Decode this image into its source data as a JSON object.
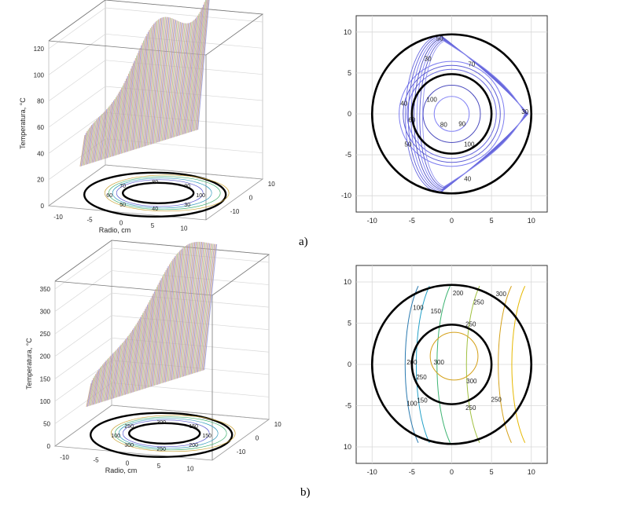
{
  "figure": {
    "label_a": "a)",
    "label_b": "b)"
  },
  "chart_data": [
    {
      "id": "a-3d",
      "type": "surface3d",
      "ylabel": "Temperatura, °C",
      "xlabel": "Radio, cm",
      "z_ticks": [
        "0",
        "20",
        "40",
        "60",
        "80",
        "100",
        "120"
      ],
      "x_ticks": [
        "-10",
        "-5",
        "0",
        "5",
        "10"
      ],
      "y_ticks": [
        "10",
        "0",
        "-10"
      ],
      "zlim": [
        0,
        130
      ],
      "base_contour_labels": [
        "100",
        "30",
        "40",
        "50",
        "60",
        "70",
        "80",
        "90"
      ],
      "grid": true
    },
    {
      "id": "a-contour",
      "type": "contour",
      "xlim": [
        -12,
        12
      ],
      "ylim": [
        -12,
        12
      ],
      "x_ticks": [
        "-10",
        "-5",
        "0",
        "5",
        "10"
      ],
      "y_ticks": [
        "10",
        "5",
        "0",
        "-5",
        "-10"
      ],
      "outer_circle_radius": 10,
      "inner_circle_radius": 5,
      "contour_labels": [
        "30",
        "40",
        "50",
        "60",
        "70",
        "80",
        "90",
        "100",
        "100",
        "30",
        "50",
        "40"
      ],
      "grid": true
    },
    {
      "id": "b-3d",
      "type": "surface3d",
      "ylabel": "Temperatura, °C",
      "xlabel": "Radio, cm",
      "z_ticks": [
        "0",
        "50",
        "100",
        "150",
        "200",
        "250",
        "300",
        "350"
      ],
      "x_ticks": [
        "-10",
        "-5",
        "0",
        "5",
        "10"
      ],
      "y_ticks": [
        "10",
        "0",
        "-10"
      ],
      "zlim": [
        0,
        380
      ],
      "base_contour_labels": [
        "150",
        "200",
        "250",
        "300",
        "100",
        "250",
        "300",
        "150"
      ],
      "grid": true
    },
    {
      "id": "b-contour",
      "type": "contour",
      "xlim": [
        -12,
        12
      ],
      "ylim": [
        -12,
        12
      ],
      "x_ticks": [
        "-10",
        "-5",
        "0",
        "5",
        "10"
      ],
      "y_ticks": [
        "10",
        "5",
        "0",
        "-5",
        "10"
      ],
      "outer_circle_radius": 10,
      "inner_circle_radius": 5,
      "contour_labels": [
        "100",
        "150",
        "200",
        "250",
        "300",
        "250",
        "200",
        "250",
        "300",
        "150",
        "100",
        "250",
        "300",
        "250"
      ],
      "grid": true
    }
  ],
  "colors": {
    "axis": "#333333",
    "grid": "#d8d8d8",
    "circle": "#000000"
  }
}
